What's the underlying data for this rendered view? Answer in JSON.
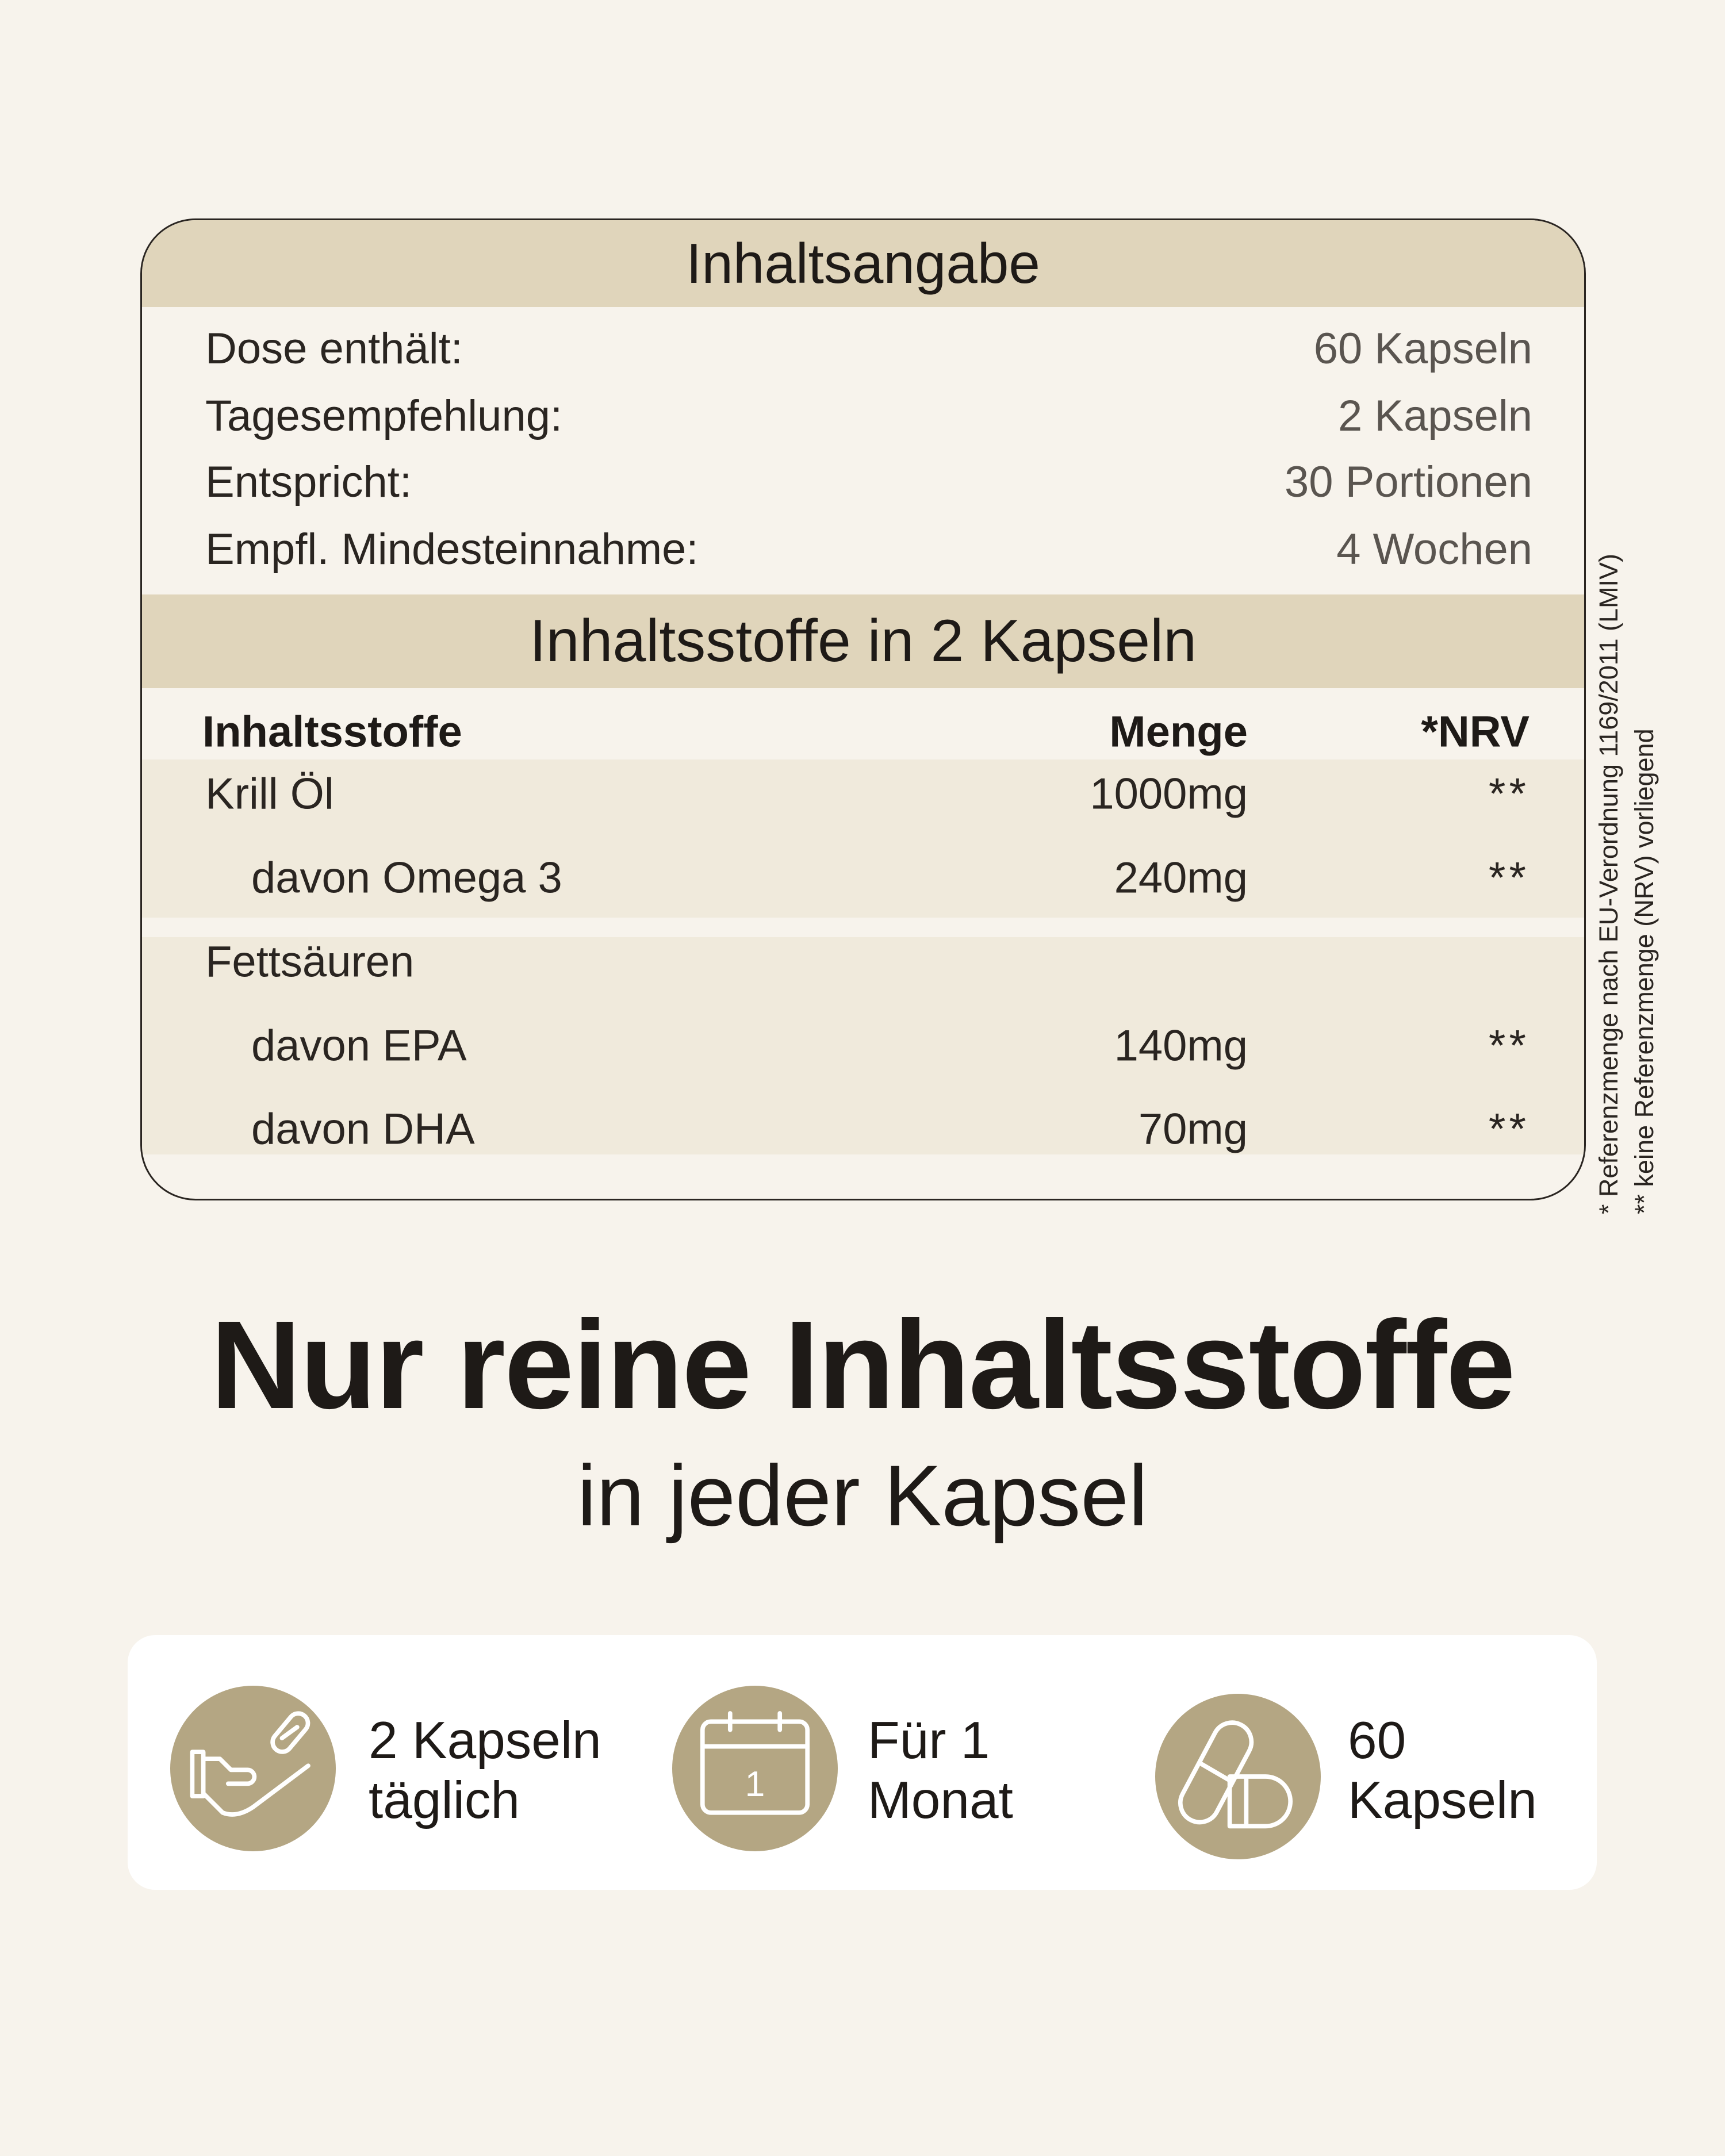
{
  "header": {
    "title": "Inhaltsangabe"
  },
  "info": [
    {
      "label": "Dose enthält:",
      "value": "60 Kapseln"
    },
    {
      "label": "Tagesempfehlung:",
      "value": "2 Kapseln"
    },
    {
      "label": "Entspricht:",
      "value": "30 Portionen"
    },
    {
      "label": "Empfl. Mindesteinnahme:",
      "value": "4 Wochen"
    }
  ],
  "ingredients": {
    "title": "Inhaltsstoffe in 2 Kapseln",
    "columns": [
      "Inhaltsstoffe",
      "Menge",
      "*NRV"
    ],
    "rows": [
      {
        "name": "Krill Öl",
        "amount": "1000mg",
        "nrv": "**"
      },
      {
        "name": "davon Omega 3",
        "amount": "240mg",
        "nrv": "**"
      },
      {
        "name": "Fettsäuren",
        "amount": "",
        "nrv": ""
      },
      {
        "name": "davon EPA",
        "amount": "140mg",
        "nrv": "**"
      },
      {
        "name": "davon DHA",
        "amount": "70mg",
        "nrv": "**"
      }
    ]
  },
  "footnotes": [
    "* Referenzmenge nach EU-Verordnung 1169/2011 (LMIV)",
    "** keine Referenzmenge (NRV) vorliegend"
  ],
  "headline": "Nur reine Inhaltsstoffe",
  "subheadline": "in jeder Kapsel",
  "features": [
    {
      "icon": "hand-capsule-icon",
      "line1": "2 Kapseln",
      "line2": "täglich"
    },
    {
      "icon": "calendar-icon",
      "line1": "Für 1",
      "line2": "Monat",
      "calendar_day": "1"
    },
    {
      "icon": "capsules-icon",
      "line1": "60",
      "line2": "Kapseln"
    }
  ],
  "colors": {
    "background": "#f7f3ec",
    "band": "#e0d5bb",
    "row_shade": "#f0eadc",
    "icon_circle": "#b4a683"
  }
}
